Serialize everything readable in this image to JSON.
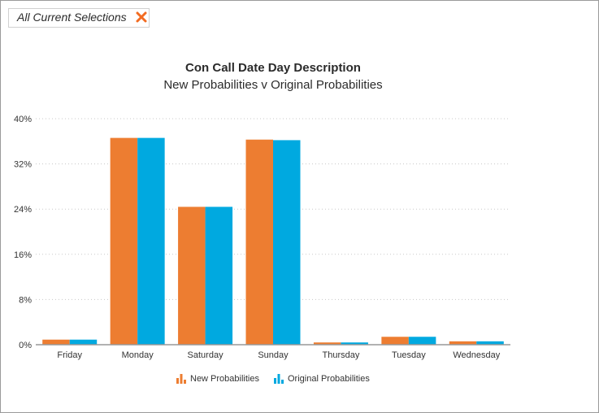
{
  "selections": {
    "label": "All Current Selections",
    "clear_icon": "close-icon",
    "clear_color": "#f26b21"
  },
  "chart_data": {
    "type": "bar",
    "title": "Con Call Date Day Description",
    "subtitle": "New Probabilities v Original Probabilities",
    "xlabel": "",
    "ylabel": "",
    "categories": [
      "Friday",
      "Monday",
      "Saturday",
      "Sunday",
      "Thursday",
      "Tuesday",
      "Wednesday"
    ],
    "series": [
      {
        "name": "New Probabilities",
        "color": "#ed7d31",
        "values": [
          0.9,
          36.6,
          24.4,
          36.3,
          0.4,
          1.4,
          0.6
        ]
      },
      {
        "name": "Original Probabilities",
        "color": "#00a9e0",
        "values": [
          0.9,
          36.6,
          24.4,
          36.2,
          0.4,
          1.4,
          0.6
        ]
      }
    ],
    "ylim": [
      0,
      40
    ],
    "yticks": [
      0,
      8,
      16,
      24,
      32,
      40
    ],
    "ytick_labels": [
      "0%",
      "8%",
      "16%",
      "24%",
      "32%",
      "40%"
    ],
    "grid": true,
    "legend_position": "bottom"
  }
}
